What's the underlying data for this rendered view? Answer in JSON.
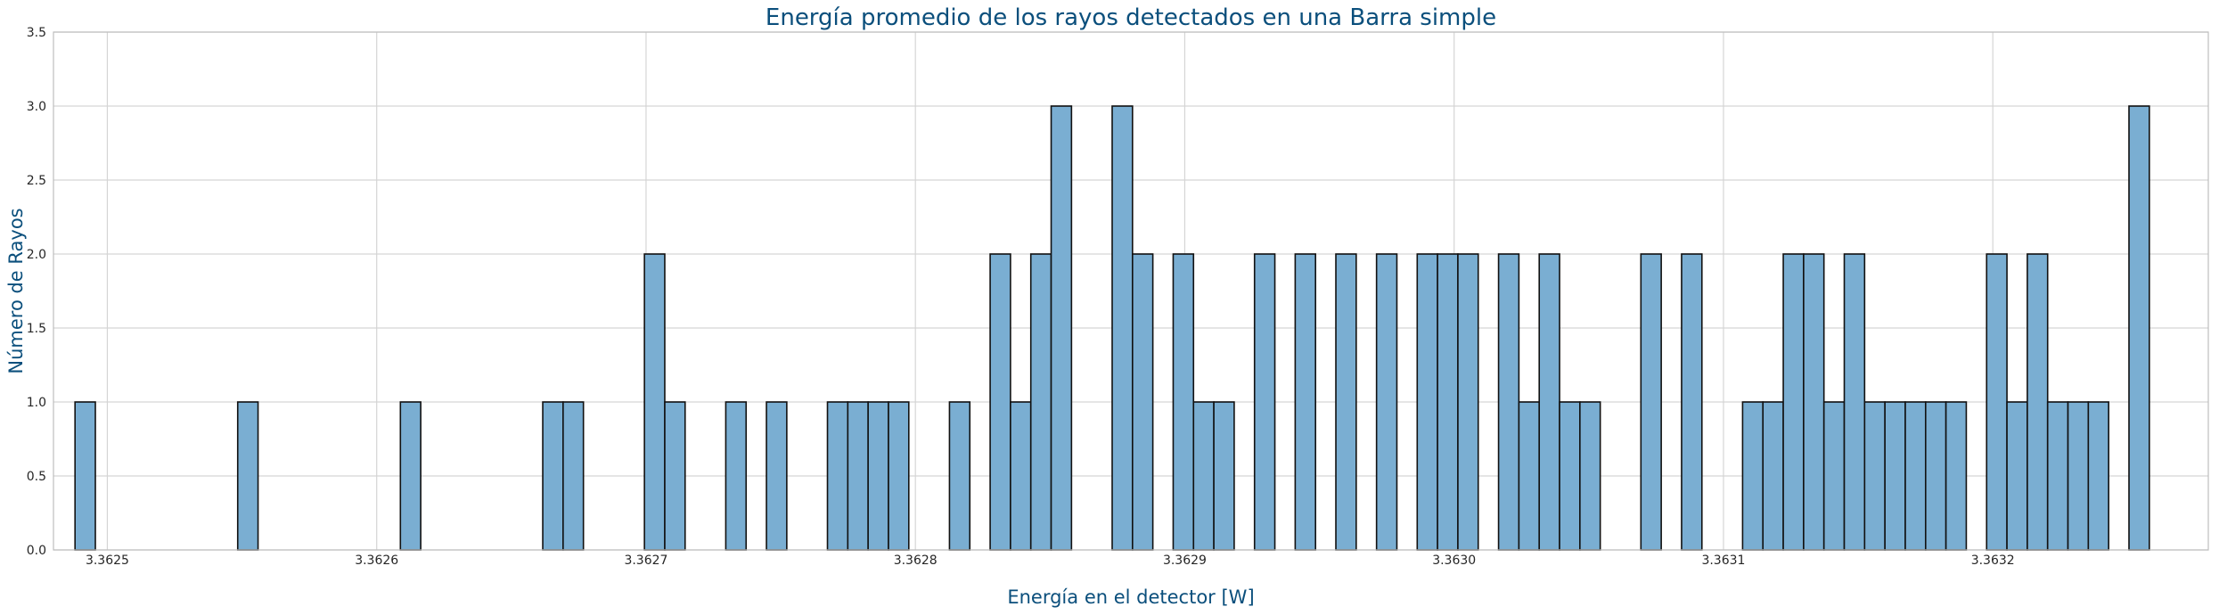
{
  "chart_data": {
    "type": "bar",
    "title": "Energía promedio de los rayos detectados en una Barra simple",
    "xlabel": "Energía en el detector [W]",
    "ylabel": "Número de Rayos",
    "xlim": [
      3.36248,
      3.36328
    ],
    "ylim": [
      0,
      3.5
    ],
    "xticks": [
      3.3625,
      3.3626,
      3.3627,
      3.3628,
      3.3629,
      3.363,
      3.3631,
      3.3632
    ],
    "xtick_labels": [
      "3.3625",
      "3.3626",
      "3.3627",
      "3.3628",
      "3.3629",
      "3.3630",
      "3.3631",
      "3.3632"
    ],
    "yticks": [
      0,
      0.5,
      1,
      1.5,
      2,
      2.5,
      3,
      3.5
    ],
    "ytick_labels": [
      "0.0",
      "0.5",
      "1.0",
      "1.5",
      "2.0",
      "2.5",
      "3.0",
      "3.5"
    ],
    "grid": true,
    "bar_color": "#7aaed2",
    "bar_edge_color": "#111111",
    "title_color": "#0b4f7c",
    "bin_start": 3.362488,
    "bin_width": 7.55e-06,
    "values": [
      1,
      0,
      0,
      0,
      0,
      0,
      0,
      0,
      1,
      0,
      0,
      0,
      0,
      0,
      0,
      0,
      1,
      0,
      0,
      0,
      0,
      0,
      0,
      1,
      1,
      0,
      0,
      0,
      2,
      1,
      0,
      0,
      1,
      0,
      1,
      0,
      0,
      1,
      1,
      1,
      1,
      0,
      0,
      1,
      0,
      2,
      1,
      2,
      3,
      0,
      0,
      3,
      2,
      0,
      2,
      1,
      1,
      0,
      2,
      0,
      2,
      0,
      2,
      0,
      2,
      0,
      2,
      2,
      2,
      0,
      2,
      1,
      2,
      1,
      1,
      0,
      0,
      2,
      0,
      2,
      0,
      0,
      1,
      1,
      2,
      2,
      1,
      2,
      1,
      1,
      1,
      1,
      1,
      0,
      2,
      1,
      2,
      1,
      1,
      1,
      0,
      3
    ]
  }
}
